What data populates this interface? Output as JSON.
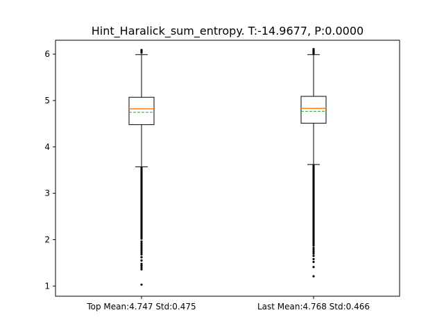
{
  "chart_data": {
    "type": "box",
    "title": "Hint_Haralick_sum_entropy. T:-14.9677, P:0.0000",
    "categories": [
      "Top Mean:4.747 Std:0.475",
      "Last Mean:4.768 Std:0.466"
    ],
    "ylim": [
      0.78,
      6.3
    ],
    "yticks": [
      1,
      2,
      3,
      4,
      5,
      6
    ],
    "grid": false,
    "series": [
      {
        "label": "Top Mean:4.747 Std:0.475",
        "whisker_low": 3.57,
        "q1": 4.48,
        "median": 4.82,
        "mean": 4.747,
        "q3": 5.07,
        "whisker_high": 5.99,
        "fliers_low_dense": [
          2.0,
          3.57
        ],
        "fliers_low": [
          1.96,
          1.92,
          1.88,
          1.84,
          1.8,
          1.76,
          1.72,
          1.68,
          1.62,
          1.55,
          1.48,
          1.44,
          1.4,
          1.36,
          1.03
        ],
        "fliers_high": [
          6.03,
          6.06,
          6.09
        ]
      },
      {
        "label": "Last Mean:4.768 Std:0.466",
        "whisker_low": 3.62,
        "q1": 4.51,
        "median": 4.83,
        "mean": 4.768,
        "q3": 5.09,
        "whisker_high": 5.99,
        "fliers_low_dense": [
          1.85,
          3.62
        ],
        "fliers_low": [
          1.82,
          1.78,
          1.74,
          1.7,
          1.65,
          1.58,
          1.52,
          1.41,
          1.21
        ],
        "fliers_high": [
          6.01,
          6.03,
          6.05,
          6.07,
          6.09,
          6.11
        ]
      }
    ],
    "colors": {
      "median": "#ff7f0e",
      "mean": "#2ca02c",
      "box": "#000000"
    }
  }
}
